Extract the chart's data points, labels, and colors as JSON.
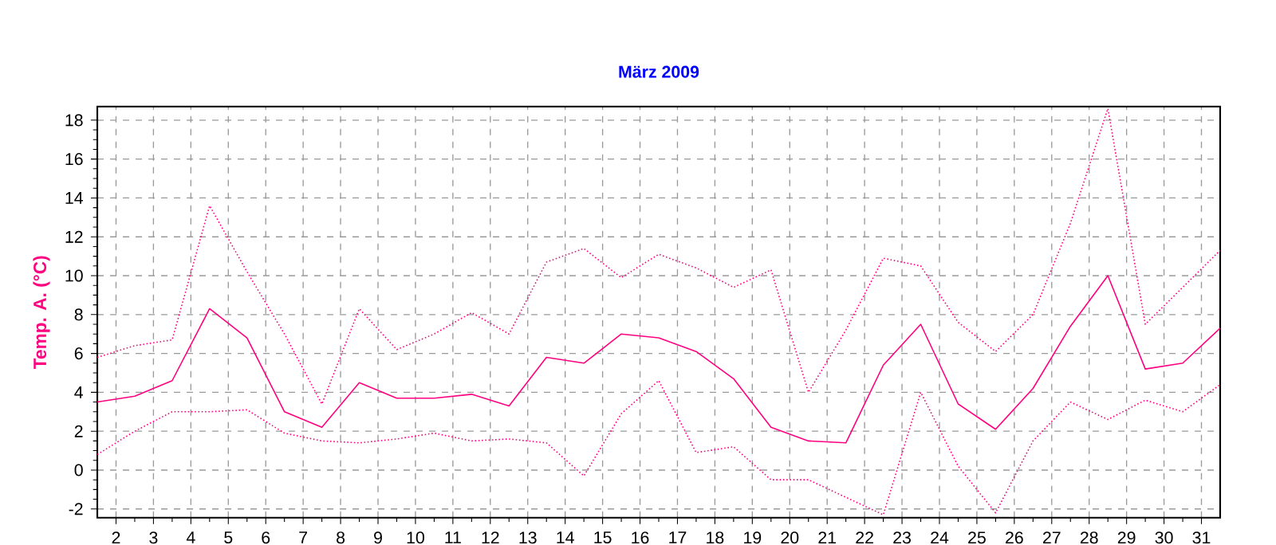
{
  "chart_data": {
    "type": "line",
    "title": "März 2009",
    "ylabel": "Temp. A. (°C)",
    "x": [
      1.5,
      2.5,
      3.5,
      4.5,
      5.5,
      6.5,
      7.5,
      8.5,
      9.5,
      10.5,
      11.5,
      12.5,
      13.5,
      14.5,
      15.5,
      16.5,
      17.5,
      18.5,
      19.5,
      20.5,
      21.5,
      22.5,
      23.5,
      24.5,
      25.5,
      26.5,
      27.5,
      28.5,
      29.5,
      30.5,
      31.5
    ],
    "series": [
      {
        "color": "#ff0080",
        "line_style": "dotted",
        "values": [
          5.8,
          6.4,
          6.7,
          13.6,
          10.2,
          7.0,
          3.4,
          8.3,
          6.2,
          7.0,
          8.1,
          7.0,
          10.7,
          11.4,
          9.9,
          11.1,
          10.4,
          9.4,
          10.3,
          4.0,
          7.2,
          10.9,
          10.5,
          7.6,
          6.1,
          8.0,
          12.7,
          18.6,
          7.5,
          9.4,
          11.3
        ]
      },
      {
        "color": "#ff0080",
        "line_style": "solid",
        "values": [
          3.5,
          3.8,
          4.6,
          8.3,
          6.8,
          3.0,
          2.2,
          4.5,
          3.7,
          3.7,
          3.9,
          3.3,
          5.8,
          5.5,
          7.0,
          6.8,
          6.1,
          4.7,
          2.2,
          1.5,
          1.4,
          5.4,
          7.5,
          3.4,
          2.1,
          4.2,
          7.4,
          10.0,
          5.2,
          5.5,
          7.3
        ]
      },
      {
        "color": "#ff0080",
        "line_style": "dotted",
        "values": [
          0.8,
          2.0,
          3.0,
          3.0,
          3.1,
          1.9,
          1.5,
          1.4,
          1.6,
          1.9,
          1.5,
          1.6,
          1.4,
          -0.3,
          2.9,
          4.6,
          0.9,
          1.2,
          -0.5,
          -0.5,
          -1.4,
          -2.3,
          4.0,
          0.2,
          -2.2,
          1.5,
          3.5,
          2.6,
          3.6,
          3.0,
          4.4
        ]
      }
    ],
    "xlim": [
      1.5,
      31.5
    ],
    "ylim": [
      -2.45,
      18.7
    ],
    "xticks": [
      2,
      3,
      4,
      5,
      6,
      7,
      8,
      9,
      10,
      11,
      12,
      13,
      14,
      15,
      16,
      17,
      18,
      19,
      20,
      21,
      22,
      23,
      24,
      25,
      26,
      27,
      28,
      29,
      30,
      31
    ],
    "yticks": [
      -2,
      0,
      2,
      4,
      6,
      8,
      10,
      12,
      14,
      16,
      18
    ],
    "grid": true,
    "marker": "none"
  }
}
